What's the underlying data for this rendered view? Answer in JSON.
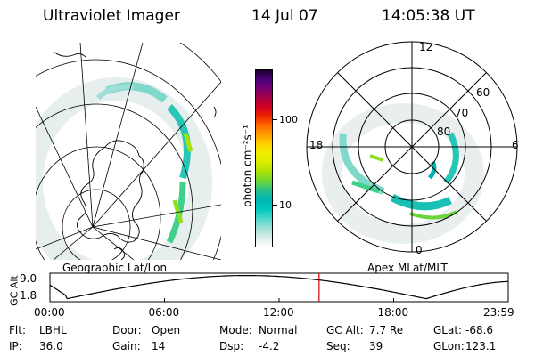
{
  "header": {
    "instrument": "Ultraviolet Imager",
    "date": "14 Jul 07",
    "time": "14:05:38 UT"
  },
  "left_panel": {
    "label": "Geographic Lat/Lon"
  },
  "right_panel": {
    "label": "Apex MLat/MLT",
    "mlt_labels": [
      "12",
      "18",
      "6",
      "0"
    ],
    "lat_labels": [
      "60",
      "70",
      "80"
    ]
  },
  "colorbar": {
    "unit_label": "photon cm⁻²s⁻¹",
    "ticks": [
      {
        "label": "100",
        "fraction": 0.72
      },
      {
        "label": "10",
        "fraction": 0.24
      }
    ],
    "colors": [
      "#ffffff",
      "#d8ecea",
      "#9fded7",
      "#4cd7c8",
      "#00c9c0",
      "#00b3b3",
      "#22c08a",
      "#6ad43a",
      "#a7e10c",
      "#d6ec00",
      "#f3ef00",
      "#ffd300",
      "#ffa200",
      "#ff6b00",
      "#f02800",
      "#d40020",
      "#a70040",
      "#790070",
      "#4a0078",
      "#1b0030"
    ]
  },
  "altitude_plot": {
    "axis_label": "GC Alt",
    "y_ticks": [
      "9.0",
      "1.8"
    ],
    "x_ticks": [
      "00:00",
      "06:00",
      "12:00",
      "18:00",
      "23:59"
    ],
    "current_time_hours": 14.094,
    "marker_color": "#d00000"
  },
  "info": [
    [
      {
        "label": "Flt:",
        "value": "LBHL"
      },
      {
        "label": "Door:",
        "value": "Open"
      },
      {
        "label": "Mode:",
        "value": "Normal"
      },
      {
        "label": "GC Alt:",
        "value": "7.7 Re"
      },
      {
        "label": "GLat:",
        "value": "-68.6"
      }
    ],
    [
      {
        "label": "IP:",
        "value": "36.0"
      },
      {
        "label": "Gain:",
        "value": "14"
      },
      {
        "label": "Dsp:",
        "value": "-4.2"
      },
      {
        "label": "Seq:",
        "value": "39"
      },
      {
        "label": "GLon:",
        "value": "123.1"
      }
    ]
  ]
}
